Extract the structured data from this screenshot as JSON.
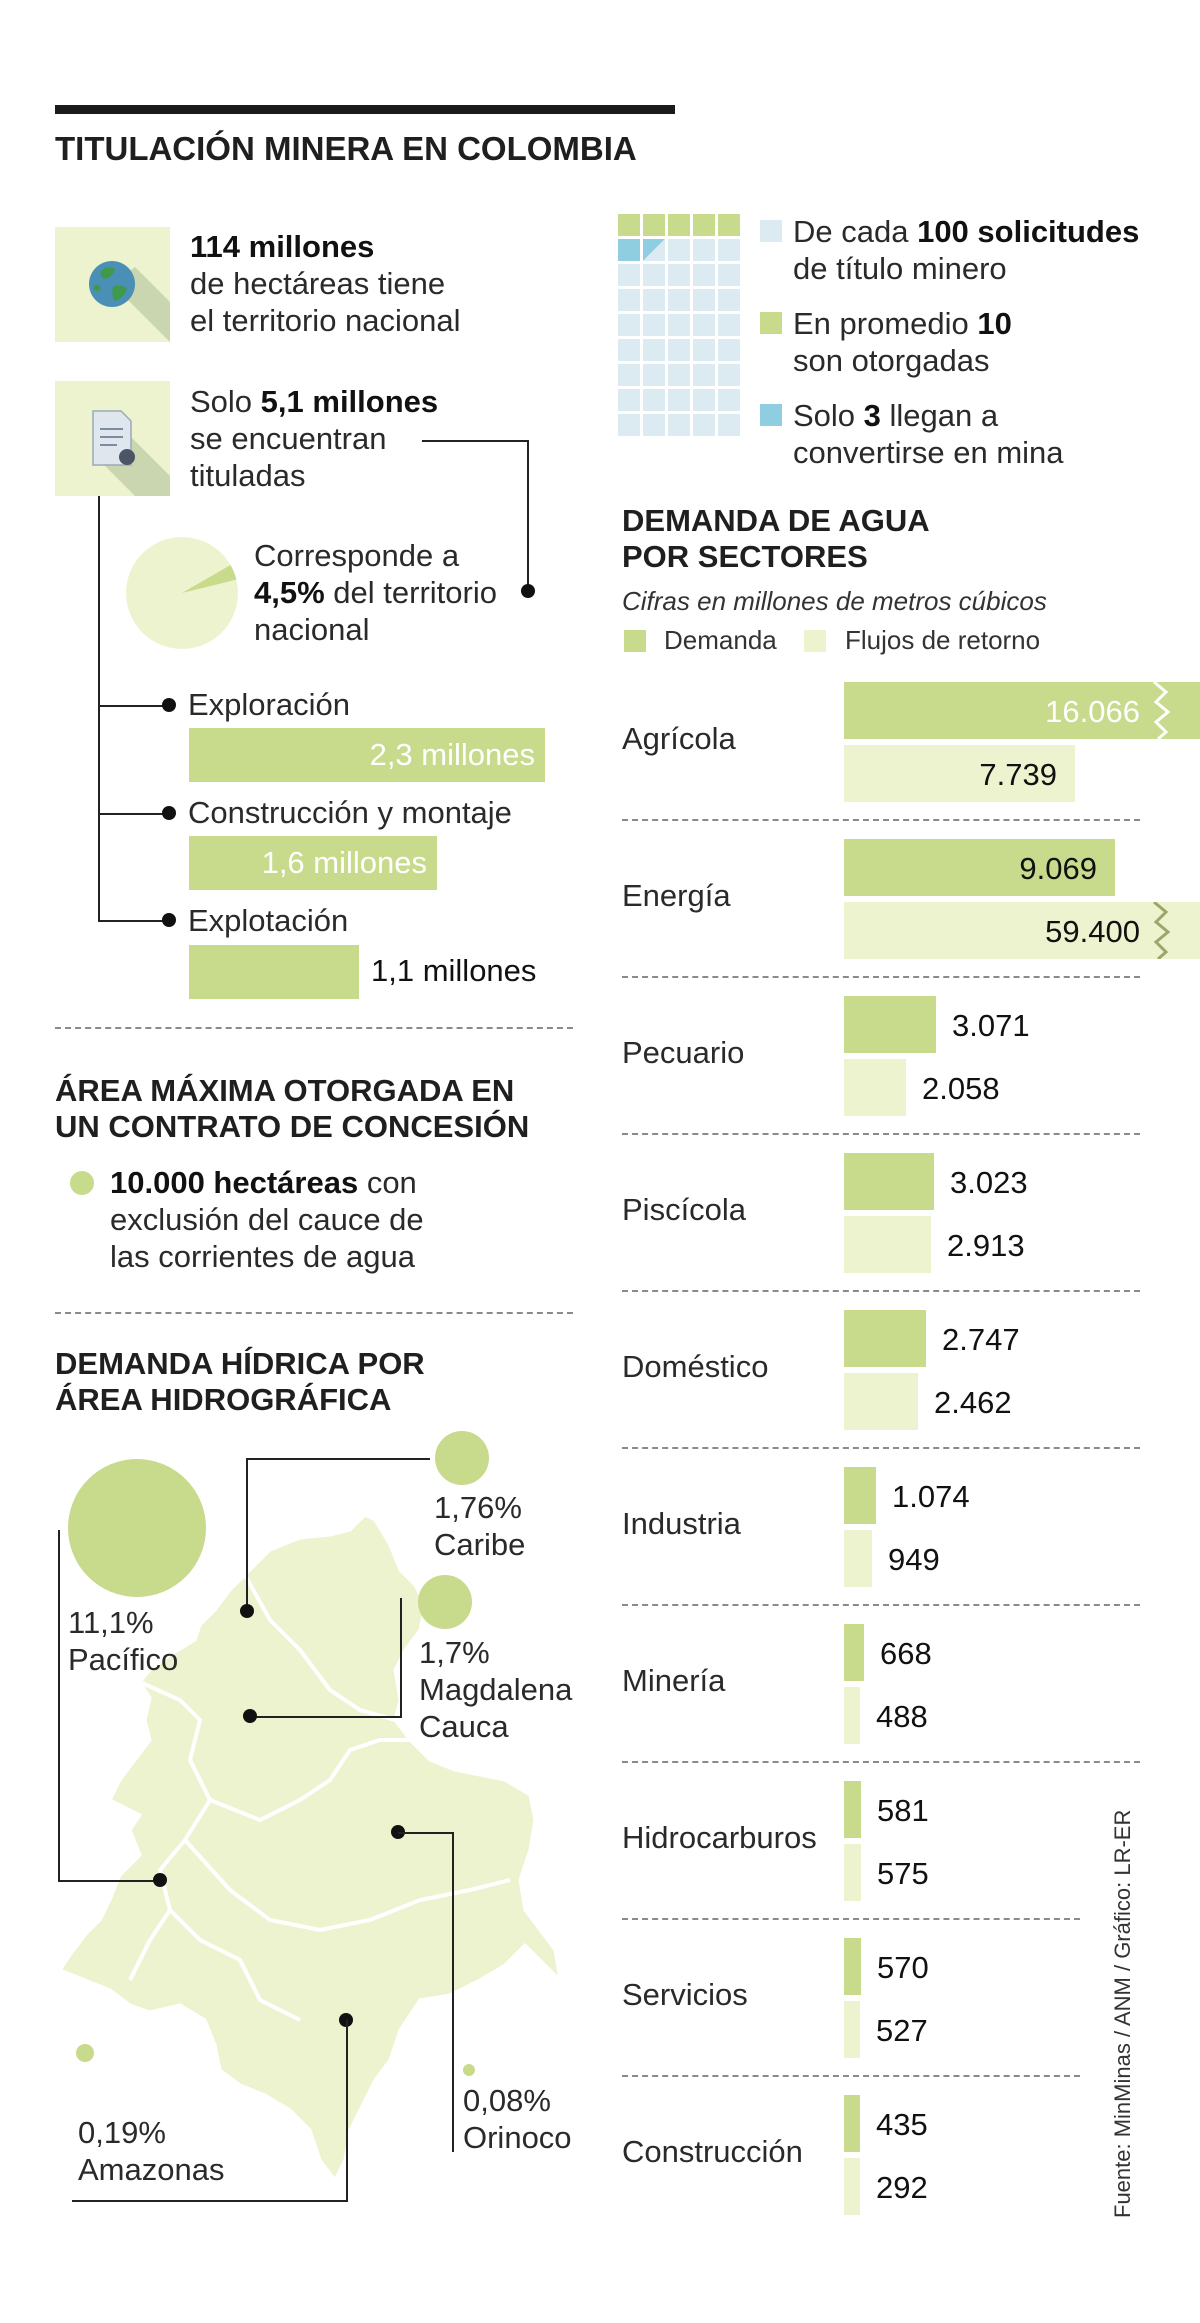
{
  "title": "TITULACIÓN MINERA EN COLOMBIA",
  "territory": {
    "line1": "114 millones",
    "line2": "de hectáreas tiene",
    "line3": "el territorio nacional",
    "icon": "globe-icon"
  },
  "titled": {
    "prefix": "Solo ",
    "value": "5,1 millones",
    "line2": "se encuentran",
    "line3": "tituladas",
    "icon": "document-icon"
  },
  "share": {
    "line1": "Corresponde a",
    "value": "4,5%",
    "line2_rest": " del territorio",
    "line3": "nacional",
    "percent": 4.5
  },
  "stages": [
    {
      "label": "Exploración",
      "value_text": "2,3 millones",
      "value": 2.3
    },
    {
      "label": "Construcción y montaje",
      "value_text": "1,6 millones",
      "value": 1.6
    },
    {
      "label": "Explotación",
      "value_text": "1,1 millones",
      "value": 1.1
    }
  ],
  "concession": {
    "title_line1": "ÁREA MÁXIMA OTORGADA EN",
    "title_line2": "UN CONTRATO DE CONCESIÓN",
    "bold": "10.000 hectáreas",
    "rest1": " con",
    "line2": "exclusión del cauce de",
    "line3": "las corrientes de agua"
  },
  "hydro": {
    "title_line1": "DEMANDA HÍDRICA POR",
    "title_line2": "ÁREA HIDROGRÁFICA",
    "areas": [
      {
        "name": "Pacífico",
        "value_text": "11,1%",
        "value": 11.1
      },
      {
        "name": "Caribe",
        "value_text": "1,76%",
        "value": 1.76
      },
      {
        "name_line1": "Magdalena",
        "name_line2": "Cauca",
        "value_text": "1,7%",
        "value": 1.7
      },
      {
        "name": "Amazonas",
        "value_text": "0,19%",
        "value": 0.19
      },
      {
        "name": "Orinoco",
        "value_text": "0,08%",
        "value": 0.08
      }
    ]
  },
  "requests": {
    "total": 100,
    "granted": 10,
    "mines": 3,
    "legend": [
      {
        "prefix": "De cada ",
        "bold": "100 solicitudes",
        "line2": "de título minero",
        "color": "#dcebf1"
      },
      {
        "prefix": "En promedio ",
        "bold": "10",
        "line2": "son otorgadas",
        "color": "#c8da8c"
      },
      {
        "prefix": "Solo ",
        "bold": "3",
        "rest": " llegan a",
        "line2": "convertirse en mina",
        "color": "#8fcde0"
      }
    ]
  },
  "chart_data": {
    "type": "bar",
    "title": "DEMANDA DE AGUA POR SECTORES",
    "title_line1": "DEMANDA DE AGUA",
    "title_line2": "POR SECTORES",
    "subtitle": "Cifras en millones de metros cúbicos",
    "legend": [
      "Demanda",
      "Flujos de retorno"
    ],
    "categories": [
      "Agrícola",
      "Energía",
      "Pecuario",
      "Piscícola",
      "Doméstico",
      "Industria",
      "Minería",
      "Hidrocarburos",
      "Servicios",
      "Construcción"
    ],
    "series": [
      {
        "name": "Demanda",
        "color": "#c8da8c",
        "values": [
          16066,
          9069,
          3071,
          3023,
          2747,
          1074,
          668,
          581,
          570,
          435
        ],
        "labels": [
          "16.066",
          "9.069",
          "3.071",
          "3.023",
          "2.747",
          "1.074",
          "668",
          "581",
          "570",
          "435"
        ]
      },
      {
        "name": "Flujos de retorno",
        "color": "#eef3cf",
        "values": [
          7739,
          59400,
          2058,
          2913,
          2462,
          949,
          488,
          575,
          527,
          292
        ],
        "labels": [
          "7.739",
          "59.400",
          "2.058",
          "2.913",
          "2.462",
          "949",
          "488",
          "575",
          "527",
          "292"
        ]
      }
    ],
    "truncated": [
      "Agrícola:Demanda",
      "Energía:Flujos de retorno"
    ]
  },
  "source": "Fuente: MinMinas / ANM / Gráfico: LR-ER",
  "colors": {
    "green": "#c8da8c",
    "light": "#eef3cf",
    "blue": "#8fcde0",
    "pale_blue": "#dcebf1"
  }
}
